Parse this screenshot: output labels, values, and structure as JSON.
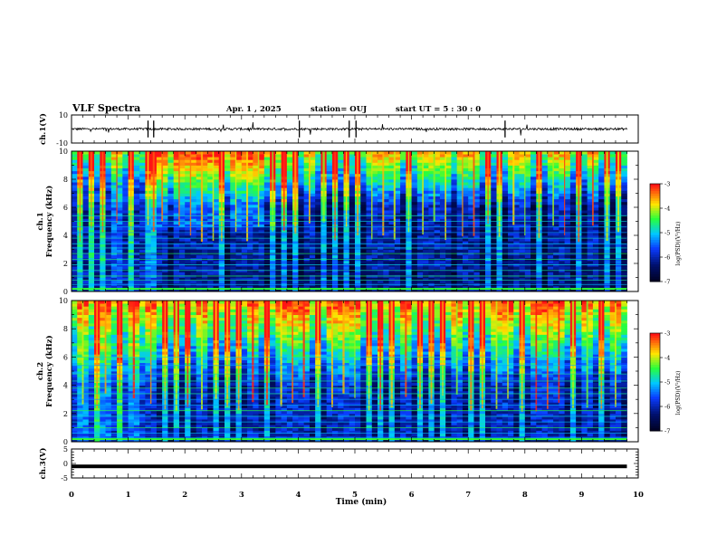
{
  "header": {
    "title": "VLF Spectra",
    "date": "Apr. 1 , 2025",
    "station": "station= OUJ",
    "start": "start  UT =   5 : 30 : 0"
  },
  "colors": {
    "background": "#000020",
    "deep_blue": "#00147a",
    "blue": "#0a3cff",
    "cyan": "#00c8ff",
    "green": "#30ff30",
    "yellow": "#ffe600",
    "red": "#ff1010"
  },
  "chart_data": [
    {
      "type": "line",
      "panel": "ch1-waveform",
      "ylabel": "ch.1(V)",
      "ylim": [
        -10,
        10
      ],
      "yticks": [
        "10",
        "-10"
      ],
      "xlim": [
        0,
        10
      ],
      "series": [
        {
          "values_description_free": true,
          "baseline": 0
        }
      ]
    },
    {
      "type": "heatmap",
      "panel": "ch1-spectrogram",
      "ylabel": "ch.1\nFrequency  (kHz)",
      "ylabel_lines": [
        "ch.1",
        "Frequency  (kHz)"
      ],
      "ylim": [
        0,
        10
      ],
      "yticks": [
        "0",
        "2",
        "4",
        "6",
        "8",
        "10"
      ],
      "xlim": [
        0,
        9.8
      ],
      "colorbar": {
        "label": "log(PSD)(V²/Hz)",
        "range": [
          -7,
          -3
        ],
        "ticks": [
          "-3",
          "-4",
          "-5",
          "-6",
          "-7"
        ]
      },
      "features": {
        "line_frequencies_kHz": [
          0.2,
          0.5,
          0.8,
          1.1,
          1.5,
          1.9,
          2.3,
          2.7,
          3.1,
          3.4,
          3.8,
          4.2,
          4.6,
          5.0,
          5.4
        ],
        "burst_times_min": [
          0.15,
          0.35,
          0.55,
          0.8,
          1.05,
          1.35,
          1.45,
          1.6,
          1.9,
          2.1,
          2.3,
          2.5,
          2.65,
          2.9,
          3.1,
          3.3,
          3.55,
          3.75,
          3.95,
          4.2,
          4.45,
          4.65,
          4.85,
          5.05,
          5.3,
          5.5,
          5.7,
          5.95,
          6.2,
          6.4,
          6.6,
          6.9,
          7.1,
          7.35,
          7.55,
          7.8,
          8.0,
          8.25,
          8.5,
          8.7,
          8.95,
          9.2,
          9.45,
          9.65
        ]
      }
    },
    {
      "type": "heatmap",
      "panel": "ch2-spectrogram",
      "ylabel": "ch.2\nFrequency  (kHz)",
      "ylabel_lines": [
        "ch.2",
        "Frequency  (kHz)"
      ],
      "ylim": [
        0,
        10
      ],
      "yticks": [
        "0",
        "2",
        "4",
        "6",
        "8",
        "10"
      ],
      "xlim": [
        0,
        9.8
      ],
      "colorbar": {
        "label": "log(PSD)(V²/Hz)",
        "range": [
          -7,
          -3
        ],
        "ticks": [
          "-3",
          "-4",
          "-5",
          "-6",
          "-7"
        ]
      },
      "features": {
        "line_frequencies_kHz": [
          0.3,
          0.6,
          1.0,
          1.4,
          1.8,
          2.2,
          2.6,
          3.0,
          3.4,
          3.8,
          4.3,
          4.8,
          5.4,
          6.0
        ],
        "burst_times_min": [
          0.2,
          0.45,
          0.6,
          0.85,
          1.1,
          1.4,
          1.65,
          1.85,
          2.05,
          2.3,
          2.55,
          2.75,
          2.95,
          3.2,
          3.45,
          3.7,
          3.9,
          4.1,
          4.35,
          4.6,
          4.8,
          5.0,
          5.25,
          5.45,
          5.65,
          5.9,
          6.15,
          6.35,
          6.55,
          6.8,
          7.05,
          7.25,
          7.5,
          7.7,
          7.95,
          8.2,
          8.4,
          8.6,
          8.85,
          9.1,
          9.35,
          9.6
        ]
      }
    },
    {
      "type": "line",
      "panel": "ch3-waveform",
      "ylabel": "ch.3(V)",
      "ylim": [
        -5,
        5
      ],
      "yticks": [
        "5",
        "0",
        "-5"
      ],
      "xlim": [
        0,
        10
      ],
      "series": [
        {
          "baseline": -1
        }
      ]
    }
  ],
  "xaxis": {
    "label": "Time  (min)",
    "ticks": [
      "0",
      "1",
      "2",
      "3",
      "4",
      "5",
      "6",
      "7",
      "8",
      "9",
      "10"
    ],
    "range": [
      0,
      10
    ]
  }
}
